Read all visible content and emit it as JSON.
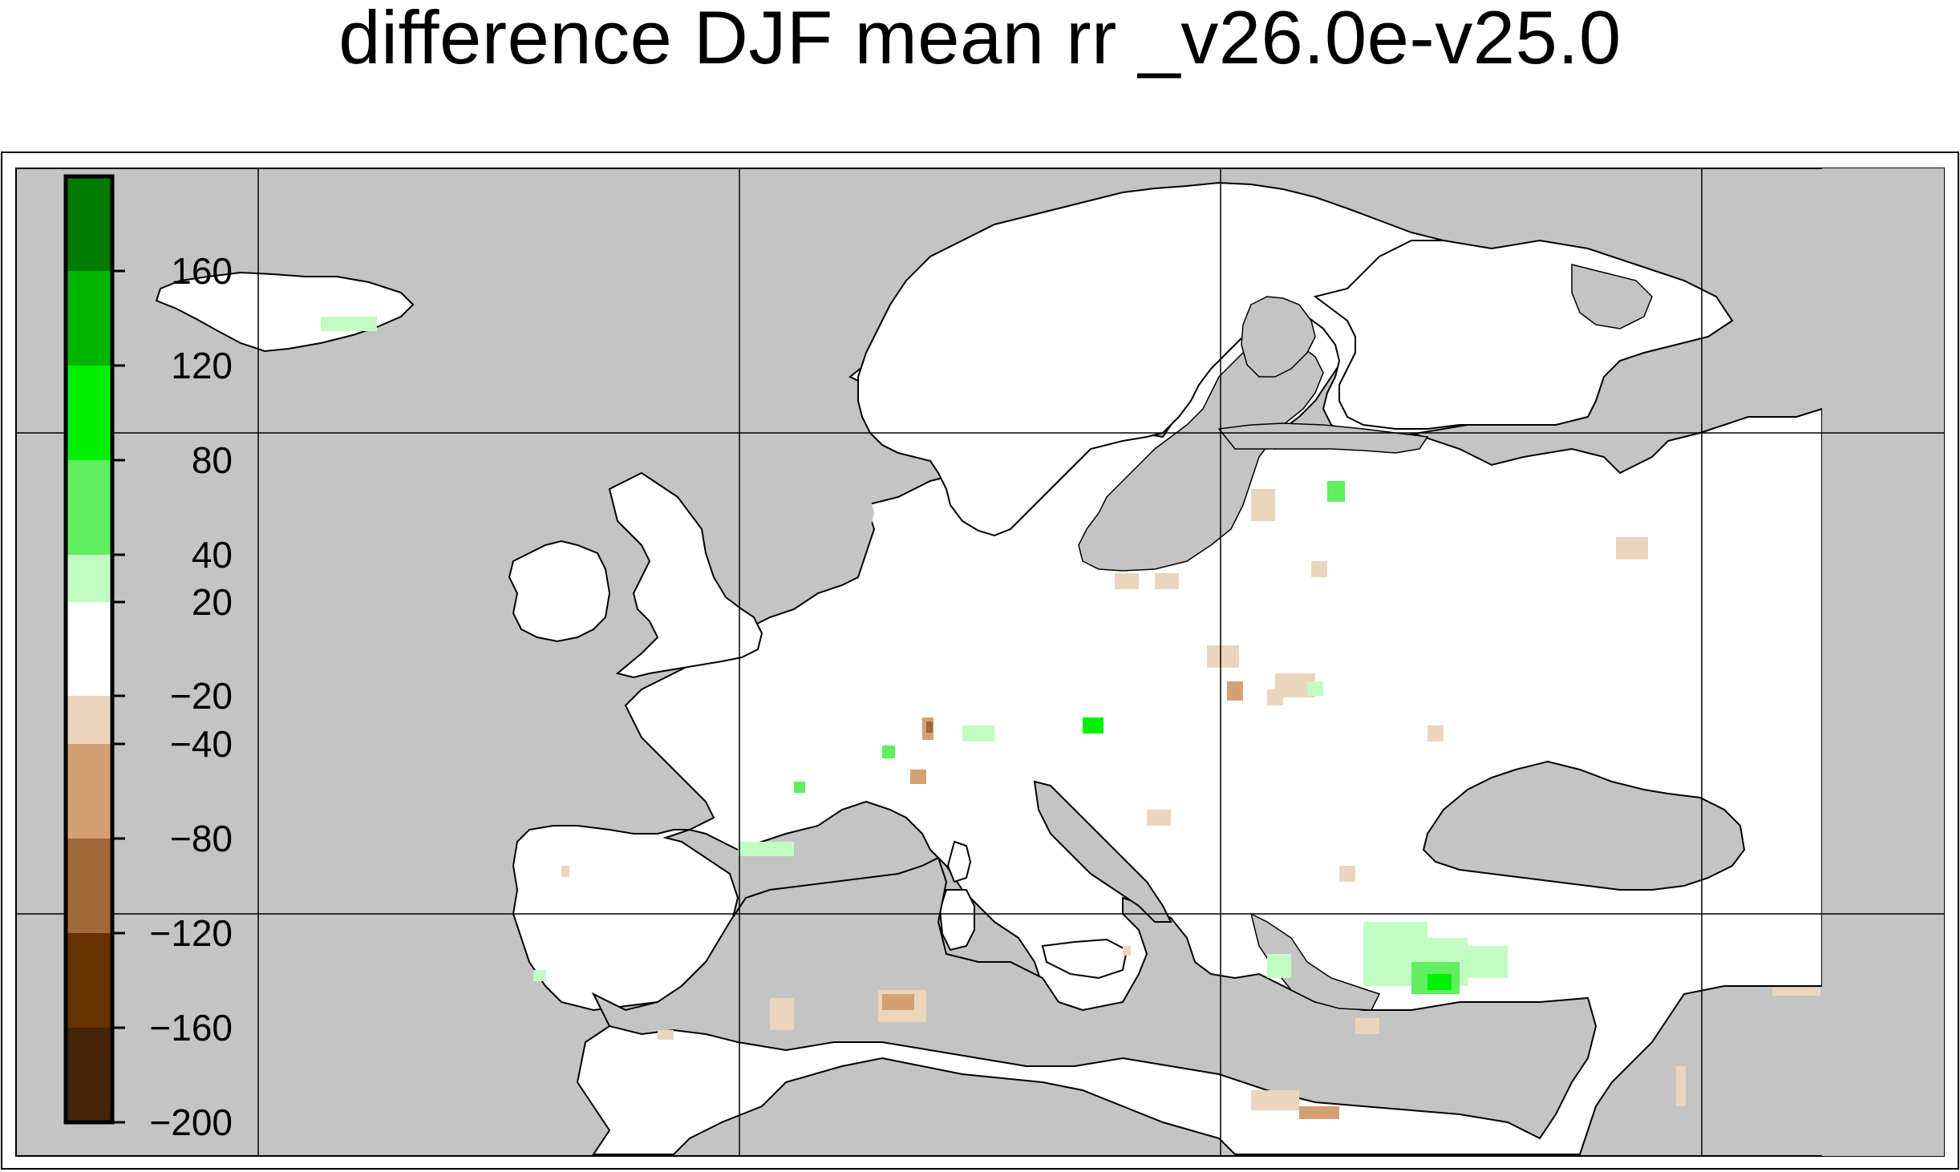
{
  "title": "difference DJF mean rr _v26.0e-v25.0",
  "colorbar": {
    "tick_labels": [
      "160",
      "120",
      "80",
      "40",
      "20",
      "−20",
      "−40",
      "−80",
      "−120",
      "−160",
      "−200"
    ],
    "bins": [
      {
        "range": "160 to 200",
        "color": "#007a00"
      },
      {
        "range": "120 to 160",
        "color": "#00b400"
      },
      {
        "range": "80 to 120",
        "color": "#00f000"
      },
      {
        "range": "40 to 80",
        "color": "#5fef5f"
      },
      {
        "range": "20 to 40",
        "color": "#c2fcc2"
      },
      {
        "range": "-20 to 20",
        "color": "#ffffff"
      },
      {
        "range": "-40 to -20",
        "color": "#ecd5bd"
      },
      {
        "range": "-80 to -40",
        "color": "#d4a174"
      },
      {
        "range": "-120 to -80",
        "color": "#a0693a"
      },
      {
        "range": "-160 to -120",
        "color": "#663101"
      },
      {
        "range": "-200 to -160",
        "color": "#442306"
      }
    ]
  },
  "colors": {
    "ocean": "#c4c4c4",
    "land": "#ffffff",
    "grid": "#000000",
    "coastline": "#000000"
  }
}
